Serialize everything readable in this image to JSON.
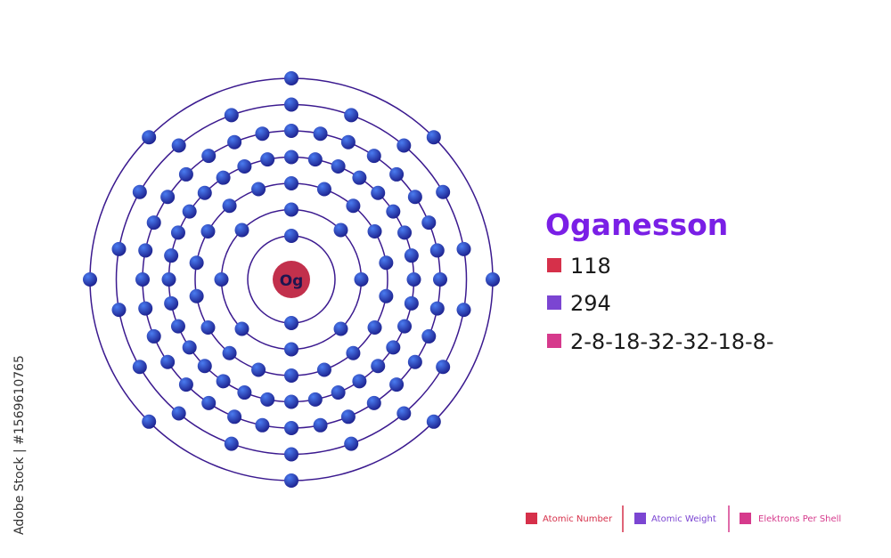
{
  "element": {
    "symbol": "Og",
    "name": "Oganesson",
    "atomic_number": "118",
    "atomic_weight": "294",
    "electrons_per_shell": "2-8-18-32-32-18-8-"
  },
  "legend": {
    "atomic_number": "Atomic Number",
    "atomic_weight": "Atomic Weight",
    "electrons_per_shell": "Elektrons Per Shell"
  },
  "watermark": "Adobe Stock | #1569610765"
}
